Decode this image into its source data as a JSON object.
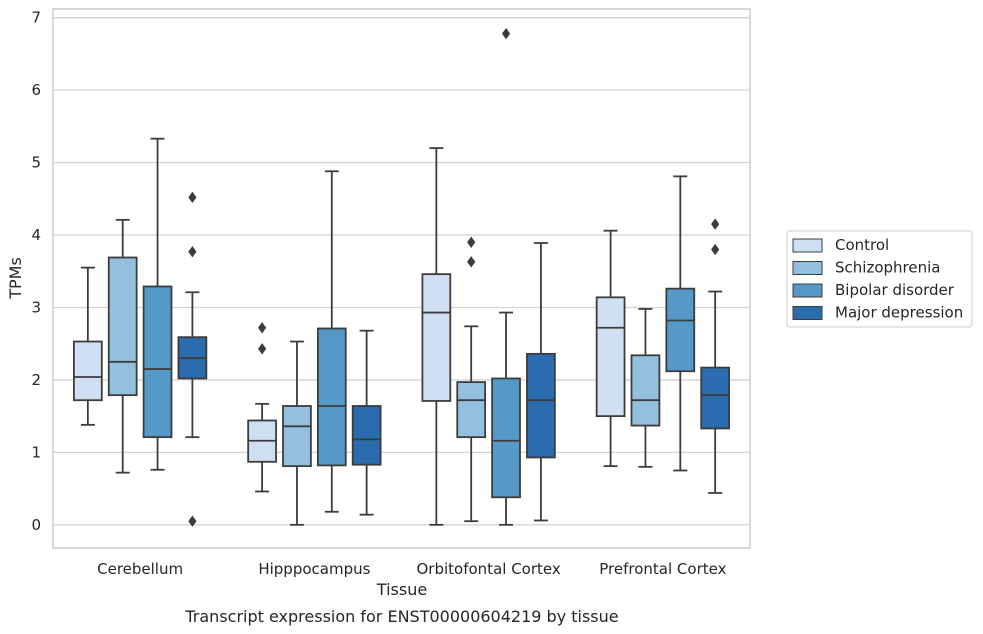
{
  "chart_data": {
    "type": "box",
    "title": "",
    "caption": "Transcript expression for ENST00000604219 by tissue",
    "xlabel": "Tissue",
    "ylabel": "TPMs",
    "ylim": [
      -0.32,
      7.12
    ],
    "yticks": [
      0,
      1,
      2,
      3,
      4,
      5,
      6,
      7
    ],
    "grid": "horizontal",
    "legend_position": "right",
    "categories": [
      "Cerebellum",
      "Hipppocampus",
      "Orbitofontal Cortex",
      "Prefrontal Cortex"
    ],
    "series": [
      {
        "name": "Control",
        "color": "#d0e0f2",
        "boxes": [
          {
            "whisker_low": 1.38,
            "q1": 1.72,
            "median": 2.04,
            "q3": 2.53,
            "whisker_high": 3.55,
            "outliers": []
          },
          {
            "whisker_low": 0.46,
            "q1": 0.87,
            "median": 1.16,
            "q3": 1.44,
            "whisker_high": 1.67,
            "outliers": [
              2.43,
              2.72
            ]
          },
          {
            "whisker_low": 0.0,
            "q1": 1.71,
            "median": 2.93,
            "q3": 3.46,
            "whisker_high": 5.2,
            "outliers": []
          },
          {
            "whisker_low": 0.81,
            "q1": 1.5,
            "median": 2.72,
            "q3": 3.14,
            "whisker_high": 4.06,
            "outliers": []
          }
        ]
      },
      {
        "name": "Schizophrenia",
        "color": "#94c0df",
        "boxes": [
          {
            "whisker_low": 0.72,
            "q1": 1.79,
            "median": 2.25,
            "q3": 3.69,
            "whisker_high": 4.21,
            "outliers": []
          },
          {
            "whisker_low": 0.0,
            "q1": 0.81,
            "median": 1.36,
            "q3": 1.64,
            "whisker_high": 2.53,
            "outliers": []
          },
          {
            "whisker_low": 0.05,
            "q1": 1.21,
            "median": 1.72,
            "q3": 1.97,
            "whisker_high": 2.74,
            "outliers": [
              3.63,
              3.9
            ]
          },
          {
            "whisker_low": 0.8,
            "q1": 1.37,
            "median": 1.72,
            "q3": 2.34,
            "whisker_high": 2.98,
            "outliers": []
          }
        ]
      },
      {
        "name": "Bipolar disorder",
        "color": "#5599c9",
        "boxes": [
          {
            "whisker_low": 0.76,
            "q1": 1.21,
            "median": 2.15,
            "q3": 3.29,
            "whisker_high": 5.33,
            "outliers": []
          },
          {
            "whisker_low": 0.18,
            "q1": 0.82,
            "median": 1.64,
            "q3": 2.71,
            "whisker_high": 4.88,
            "outliers": []
          },
          {
            "whisker_low": 0.0,
            "q1": 0.38,
            "median": 1.16,
            "q3": 2.02,
            "whisker_high": 2.93,
            "outliers": [
              6.78
            ]
          },
          {
            "whisker_low": 0.75,
            "q1": 2.12,
            "median": 2.82,
            "q3": 3.26,
            "whisker_high": 4.81,
            "outliers": []
          }
        ]
      },
      {
        "name": "Major depression",
        "color": "#2a6cad",
        "boxes": [
          {
            "whisker_low": 1.21,
            "q1": 2.02,
            "median": 2.3,
            "q3": 2.59,
            "whisker_high": 3.21,
            "outliers": [
              0.05,
              3.77,
              4.52
            ]
          },
          {
            "whisker_low": 0.14,
            "q1": 0.83,
            "median": 1.18,
            "q3": 1.64,
            "whisker_high": 2.68,
            "outliers": []
          },
          {
            "whisker_low": 0.06,
            "q1": 0.93,
            "median": 1.72,
            "q3": 2.36,
            "whisker_high": 3.89,
            "outliers": []
          },
          {
            "whisker_low": 0.44,
            "q1": 1.33,
            "median": 1.79,
            "q3": 2.17,
            "whisker_high": 3.22,
            "outliers": [
              3.8,
              4.15
            ]
          }
        ]
      }
    ]
  }
}
